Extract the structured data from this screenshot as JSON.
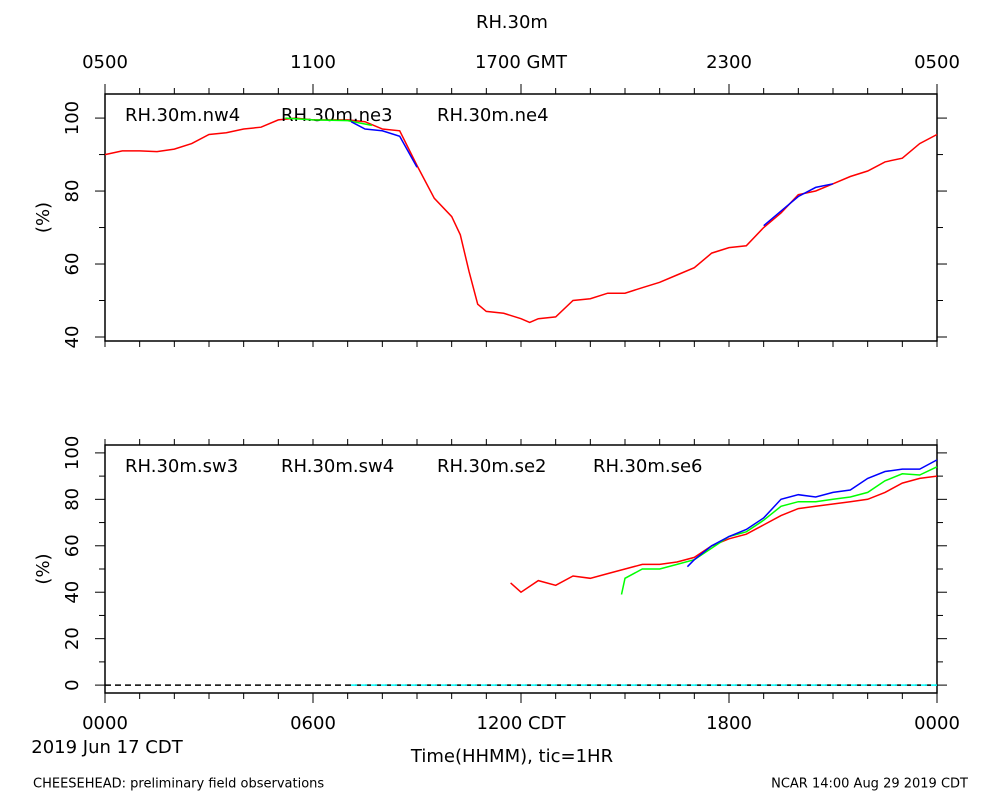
{
  "footer": {
    "left": "CHEESEHEAD: preliminary field observations",
    "right": "NCAR 14:00 Aug 29 2019 CDT"
  },
  "chart_data": [
    {
      "type": "line",
      "title": "RH.30m",
      "ylabel": "(%)",
      "xlim": [
        0,
        24
      ],
      "ylim": [
        38.9,
        106.6
      ],
      "yticks": [
        40,
        60,
        80,
        100
      ],
      "yminorticks": [
        50,
        70,
        90
      ],
      "x2ticks": [
        {
          "value": 0,
          "label": "0500"
        },
        {
          "value": 6,
          "label": "1100"
        },
        {
          "value": 12,
          "label": "1700 GMT"
        },
        {
          "value": 18,
          "label": "2300"
        },
        {
          "value": 24,
          "label": "0500"
        }
      ],
      "xminorticks": [
        0,
        1,
        2,
        3,
        4,
        5,
        6,
        7,
        8,
        9,
        10,
        11,
        12,
        13,
        14,
        15,
        16,
        17,
        18,
        19,
        20,
        21,
        22,
        23,
        24
      ],
      "series": [
        {
          "name": "RH.30m.nw4",
          "color": "#ff0000",
          "x": [
            0,
            0.5,
            1,
            1.5,
            2,
            2.5,
            3,
            3.5,
            4,
            4.5,
            5,
            5.5,
            6,
            6.5,
            7,
            7.5,
            8,
            8.5,
            9,
            9.5,
            10,
            10.25,
            10.5,
            10.75,
            11,
            11.5,
            12,
            12.25,
            12.5,
            13,
            13.5,
            14,
            14.5,
            15,
            15.5,
            16,
            16.5,
            17,
            17.5,
            18,
            18.5,
            19,
            19.5,
            20,
            20.5,
            21,
            21.5,
            22,
            22.5,
            23,
            23.5,
            24
          ],
          "values": [
            90,
            91,
            91,
            90.8,
            91.5,
            93,
            95.5,
            96,
            97,
            97.5,
            99.5,
            100,
            99.5,
            99.5,
            99.5,
            99,
            97,
            96.5,
            87,
            78,
            73,
            68,
            58,
            49,
            47,
            46.5,
            45,
            44,
            45,
            45.5,
            50,
            50.5,
            52,
            52,
            53.5,
            55,
            57,
            59,
            63,
            64.5,
            65,
            70,
            74,
            79,
            80,
            82,
            84,
            85.5,
            88,
            89,
            93,
            95.5
          ]
        },
        {
          "name": "RH.30m.ne3",
          "color": "#00ff00",
          "x": [
            5.2,
            6,
            7,
            7.7
          ],
          "values": [
            100,
            99.5,
            99.3,
            98
          ]
        },
        {
          "name": "RH.30m.ne4",
          "color": "#0000ff",
          "x": [
            7.1,
            7.5,
            8,
            8.5,
            9,
            14,
            19,
            19.5,
            20,
            20.5,
            21
          ],
          "values": [
            99,
            97,
            96.5,
            95,
            86.5,
            null,
            70.5,
            74.5,
            78.5,
            81,
            82
          ]
        }
      ]
    },
    {
      "type": "line",
      "ylabel": "(%)",
      "xlabel": "Time(HHMM), tic=1HR",
      "date": "2019 Jun 17 CDT",
      "xlim": [
        0,
        24
      ],
      "ylim": [
        -3.4,
        103.4
      ],
      "yticks": [
        0,
        20,
        40,
        60,
        80,
        100
      ],
      "yminorticks": [
        10,
        30,
        50,
        70,
        90
      ],
      "xticks": [
        {
          "value": 0,
          "label": "0000"
        },
        {
          "value": 6,
          "label": "0600"
        },
        {
          "value": 12,
          "label": "1200 CDT"
        },
        {
          "value": 18,
          "label": "1800"
        },
        {
          "value": 24,
          "label": "0000"
        }
      ],
      "xminorticks": [
        0,
        1,
        2,
        3,
        4,
        5,
        6,
        7,
        8,
        9,
        10,
        11,
        12,
        13,
        14,
        15,
        16,
        17,
        18,
        19,
        20,
        21,
        22,
        23,
        24
      ],
      "zero_line": true,
      "series": [
        {
          "name": "RH.30m.sw3",
          "color": "#ff0000",
          "x": [
            11.7,
            12,
            12.5,
            13,
            13.5,
            14,
            14.5,
            15,
            15.5,
            16,
            16.5,
            17,
            17.5,
            18,
            18.5,
            19,
            19.5,
            20,
            20.5,
            21,
            21.5,
            22,
            22.5,
            23,
            23.5,
            24
          ],
          "values": [
            44,
            40,
            45,
            43,
            47,
            46,
            48,
            50,
            52,
            52,
            53,
            55,
            60,
            63,
            65,
            69,
            73,
            76,
            77,
            78,
            79,
            80,
            83,
            87,
            89,
            90
          ]
        },
        {
          "name": "RH.30m.sw4",
          "color": "#00ff00",
          "x": [
            14.9,
            15,
            15.5,
            16,
            16.5,
            17,
            17.5,
            18,
            18.5,
            19,
            19.5,
            20,
            20.5,
            21,
            21.5,
            22,
            22.5,
            23,
            23.5,
            24
          ],
          "values": [
            39,
            46,
            50,
            50,
            52,
            54,
            59,
            64,
            66,
            71,
            77,
            79,
            79,
            80,
            81,
            83,
            88,
            91,
            90.5,
            94
          ]
        },
        {
          "name": "RH.30m.se2",
          "color": "#0000ff",
          "x": [
            16.8,
            17,
            17.5,
            18,
            18.5,
            19,
            19.5,
            20,
            20.5,
            21,
            21.5,
            22,
            22.5,
            23,
            23.5,
            24
          ],
          "values": [
            51,
            54,
            60,
            64,
            67,
            72,
            80,
            82,
            81,
            83,
            84,
            89,
            92,
            93,
            93,
            97
          ]
        },
        {
          "name": "RH.30m.se6",
          "color": "#00ffff",
          "dashed": true,
          "x": [
            7.1,
            24
          ],
          "values": [
            0,
            0
          ]
        }
      ]
    }
  ]
}
